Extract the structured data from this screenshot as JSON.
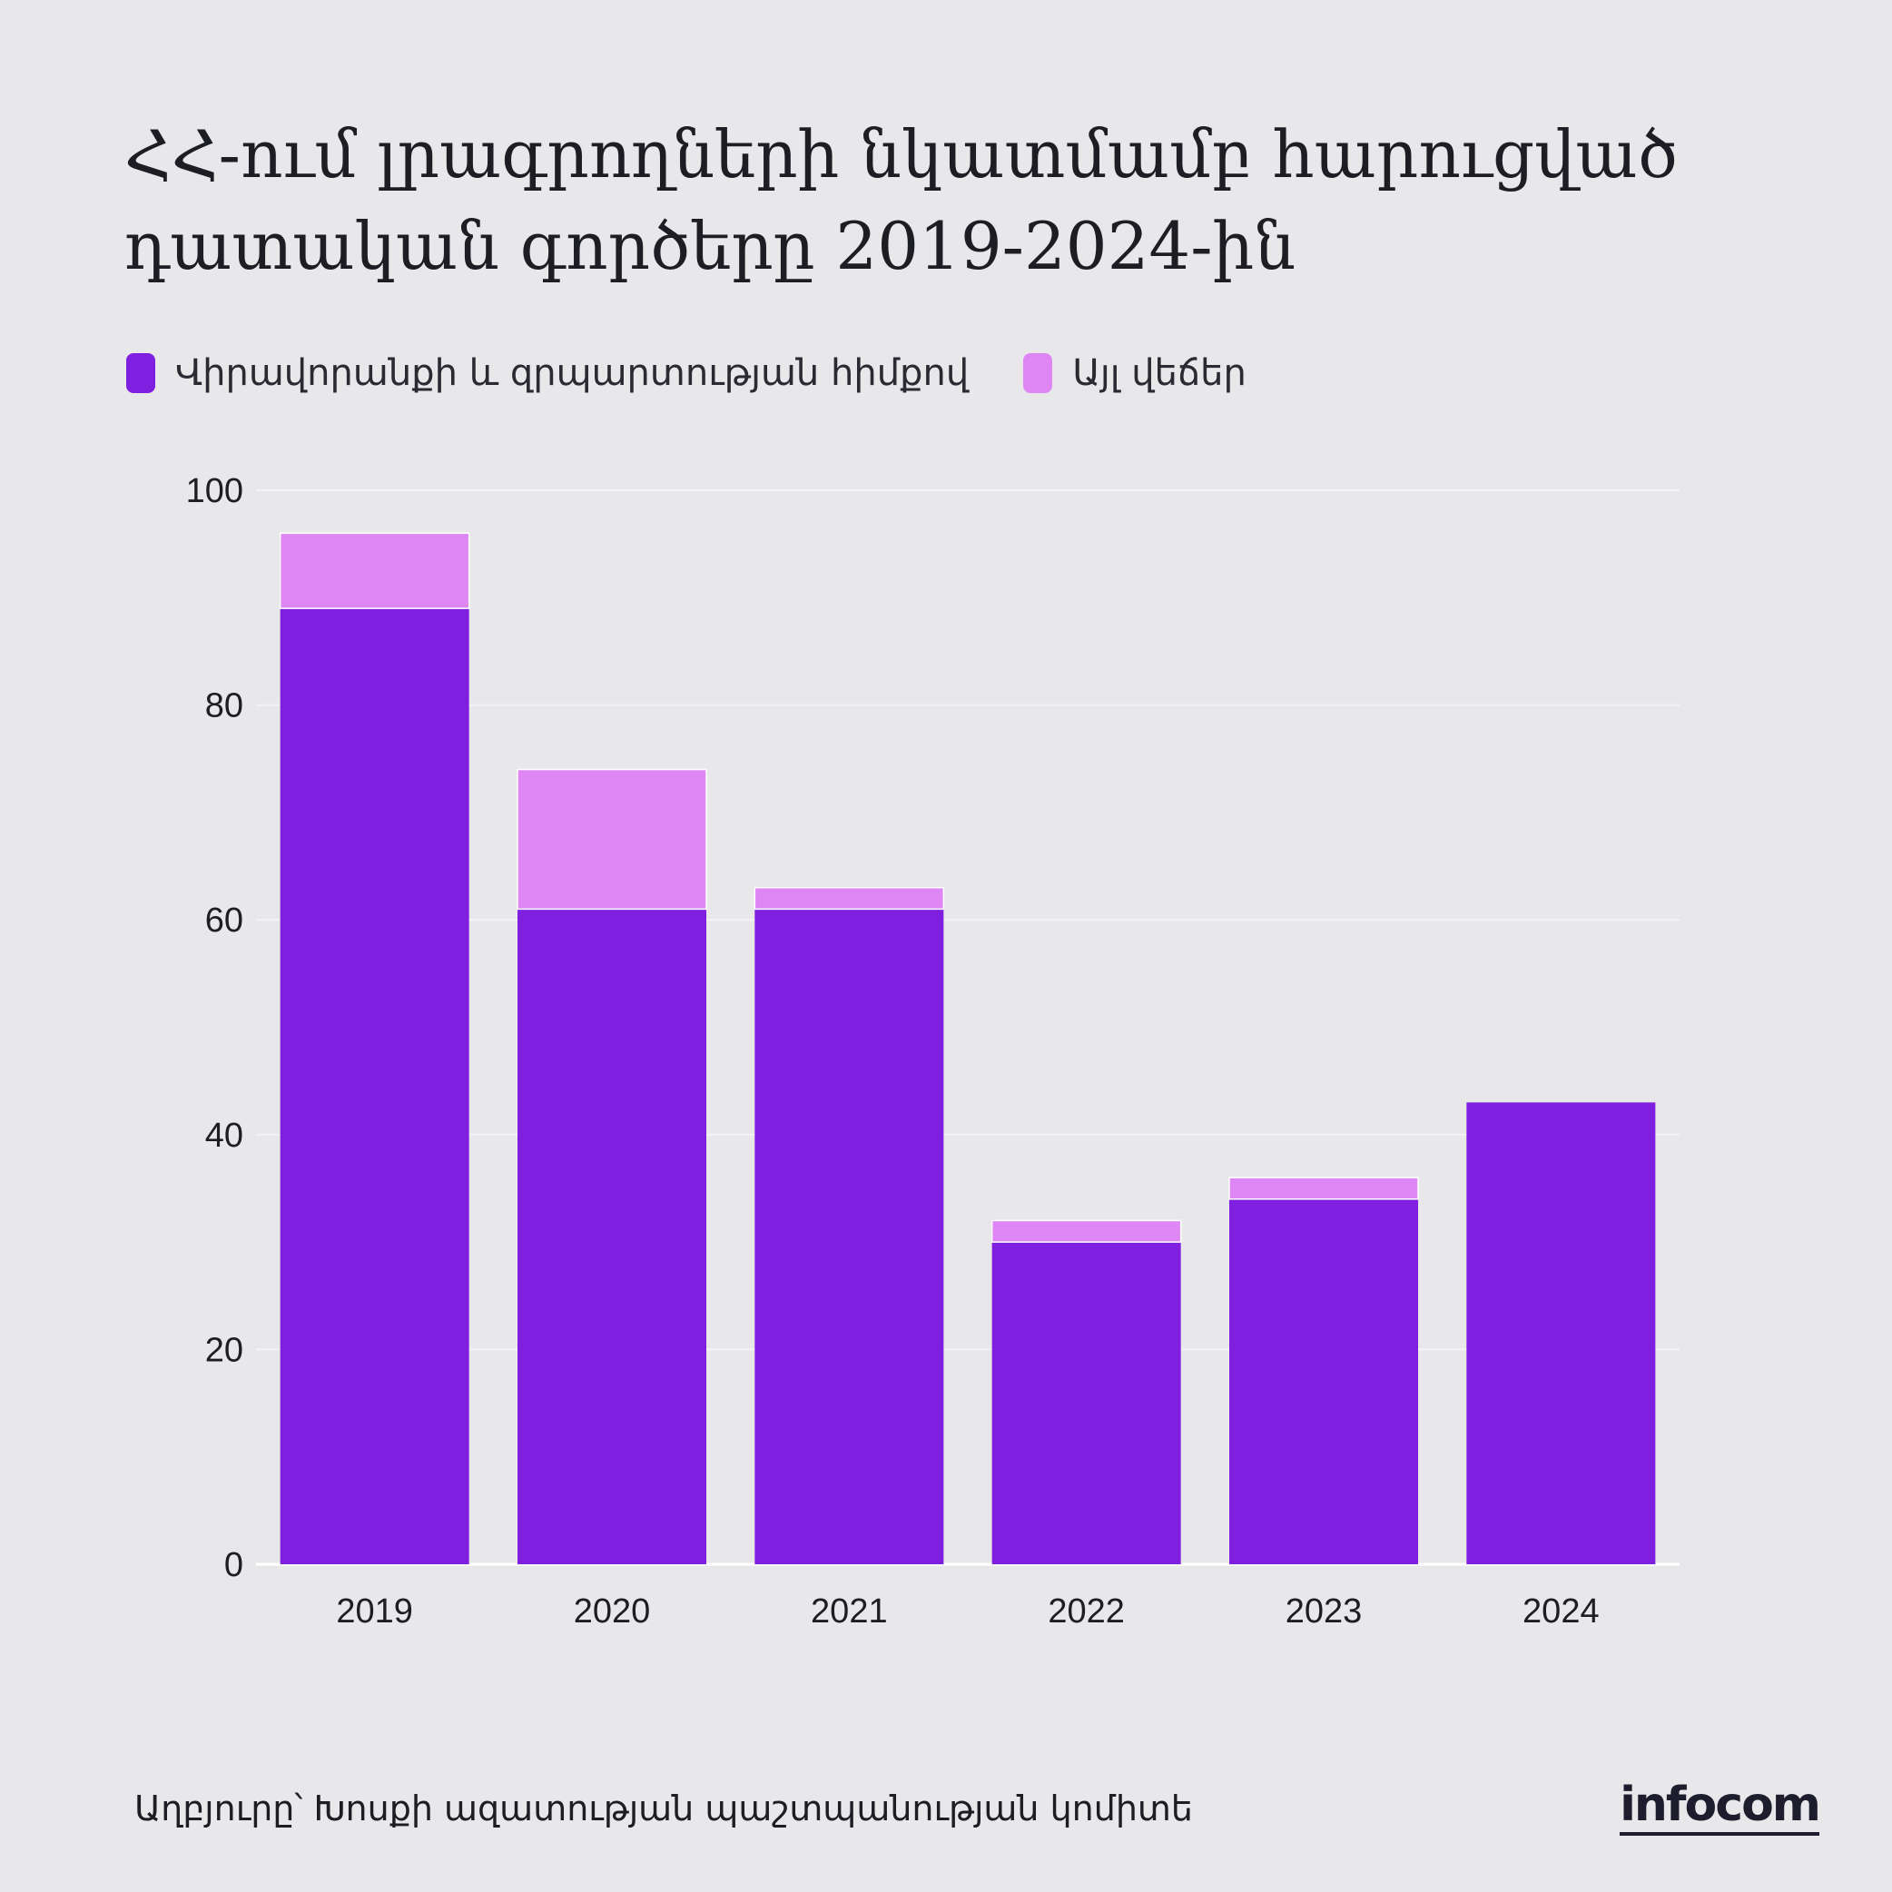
{
  "title": "ՀՀ-ում լրագրողների նկատմամբ հարուցված դատական գործերը 2019-2024-ին",
  "source": "Աղբյուրը՝ Խոսքի ազատության պաշտպանության կոմիտե",
  "logo_text": "infocom",
  "colors": {
    "background": "#e8e8ea",
    "primary": "#7f1fdf",
    "secondary": "#dd86f4",
    "grid": "#f3f3f5"
  },
  "chart_data": {
    "type": "bar",
    "stacked": true,
    "title": "ՀՀ-ում լրագրողների նկատմամբ հարուցված դատական գործերը 2019-2024-ին",
    "categories": [
      "2019",
      "2020",
      "2021",
      "2022",
      "2023",
      "2024"
    ],
    "series": [
      {
        "name": "Վիրավորանքի և զրպարտության հիմքով",
        "values": [
          89,
          61,
          61,
          30,
          34,
          43
        ],
        "color": "#7f1fdf"
      },
      {
        "name": "Այլ վեճեր",
        "values": [
          7,
          13,
          2,
          2,
          2,
          0
        ],
        "color": "#dd86f4"
      }
    ],
    "ylim": [
      0,
      100
    ],
    "yticks": [
      0,
      20,
      40,
      60,
      80,
      100
    ],
    "xlabel": "",
    "ylabel": "",
    "grid": true,
    "legend_position": "top-left"
  }
}
